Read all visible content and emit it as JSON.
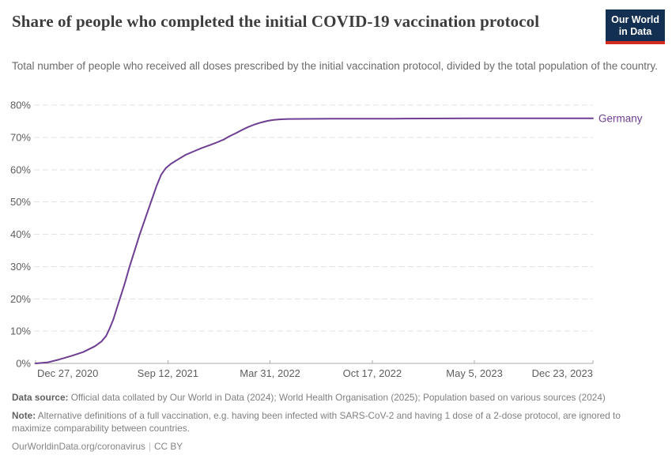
{
  "header": {
    "title": "Share of people who completed the initial COVID-19 vaccination protocol",
    "subtitle": "Total number of people who received all doses prescribed by the initial vaccination protocol, divided by the total population of the country.",
    "logo": {
      "line1": "Our World",
      "line2": "in Data",
      "bg_color": "#132f51",
      "accent_color": "#d42b21"
    }
  },
  "chart_data": {
    "type": "line",
    "title": "Share of people who completed the initial COVID-19 vaccination protocol",
    "xlabel": "",
    "ylabel": "",
    "ylim": [
      0,
      80
    ],
    "y_step": 10,
    "y_tick_suffix": "%",
    "grid": "dashed-horizontal",
    "legend_position": "end-of-line",
    "x_start_date": "2020-12-27",
    "x_end_date": "2023-12-23",
    "x_ticks": [
      {
        "label": "Dec 27, 2020",
        "date": "2020-12-27"
      },
      {
        "label": "Sep 12, 2021",
        "date": "2021-09-12"
      },
      {
        "label": "Mar 31, 2022",
        "date": "2022-03-31"
      },
      {
        "label": "Oct 17, 2022",
        "date": "2022-10-17"
      },
      {
        "label": "May 5, 2023",
        "date": "2023-05-05"
      },
      {
        "label": "Dec 23, 2023",
        "date": "2023-12-23"
      }
    ],
    "series": [
      {
        "name": "Germany",
        "color": "#6d3e91",
        "points": [
          [
            "2020-12-27",
            0
          ],
          [
            "2021-01-19",
            0.3
          ],
          [
            "2021-02-11",
            1.2
          ],
          [
            "2021-03-07",
            2.3
          ],
          [
            "2021-03-30",
            3.5
          ],
          [
            "2021-04-22",
            5.3
          ],
          [
            "2021-05-05",
            6.8
          ],
          [
            "2021-05-14",
            8.5
          ],
          [
            "2021-05-20",
            10.5
          ],
          [
            "2021-05-28",
            13.5
          ],
          [
            "2021-06-04",
            17.0
          ],
          [
            "2021-06-12",
            21.0
          ],
          [
            "2021-06-20",
            25.0
          ],
          [
            "2021-06-29",
            30.0
          ],
          [
            "2021-07-09",
            35.0
          ],
          [
            "2021-07-19",
            40.0
          ],
          [
            "2021-07-30",
            45.0
          ],
          [
            "2021-08-10",
            50.0
          ],
          [
            "2021-08-21",
            55.0
          ],
          [
            "2021-08-30",
            58.5
          ],
          [
            "2021-09-08",
            60.5
          ],
          [
            "2021-09-18",
            61.8
          ],
          [
            "2021-10-02",
            63.2
          ],
          [
            "2021-10-17",
            64.6
          ],
          [
            "2021-11-02",
            65.7
          ],
          [
            "2021-11-17",
            66.7
          ],
          [
            "2021-12-03",
            67.6
          ],
          [
            "2021-12-18",
            68.5
          ],
          [
            "2021-12-30",
            69.3
          ],
          [
            "2022-01-10",
            70.3
          ],
          [
            "2022-01-23",
            71.3
          ],
          [
            "2022-02-04",
            72.3
          ],
          [
            "2022-02-16",
            73.2
          ],
          [
            "2022-03-01",
            74.0
          ],
          [
            "2022-03-13",
            74.6
          ],
          [
            "2022-03-26",
            75.1
          ],
          [
            "2022-04-07",
            75.4
          ],
          [
            "2022-04-21",
            75.6
          ],
          [
            "2022-05-06",
            75.7
          ],
          [
            "2022-07-31",
            75.8
          ],
          [
            "2022-12-01",
            75.8
          ],
          [
            "2023-05-05",
            75.9
          ],
          [
            "2023-12-23",
            75.9
          ]
        ]
      }
    ]
  },
  "footer": {
    "source_label": "Data source:",
    "source_text": "Official data collated by Our World in Data (2024); World Health Organisation (2025); Population based on various sources (2024)",
    "note_label": "Note:",
    "note_text": "Alternative definitions of a full vaccination, e.g. having been infected with SARS-CoV-2 and having 1 dose of a 2-dose protocol, are ignored to maximize comparability between countries.",
    "url": "OurWorldinData.org/coronavirus",
    "divider": "|",
    "license": "CC BY"
  }
}
